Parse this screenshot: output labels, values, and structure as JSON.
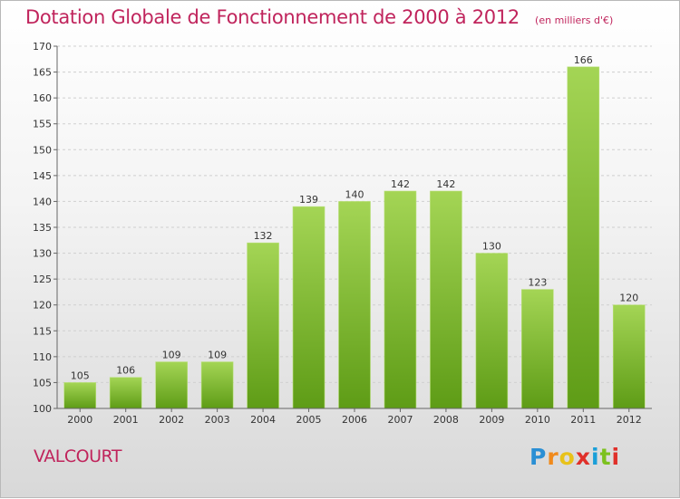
{
  "header": {
    "title": "Dotation Globale de Fonctionnement de 2000 à 2012",
    "subtitle": "(en milliers d'€)"
  },
  "commune": "VALCOURT",
  "logo": {
    "text": "Proxiti",
    "letters": [
      "P",
      "r",
      "o",
      "x",
      "i",
      "t",
      "i"
    ],
    "colors": [
      "#2a8fd4",
      "#f08a1c",
      "#e8c21a",
      "#e0302a",
      "#1a9fd8",
      "#7cc11e",
      "#e0302a"
    ]
  },
  "chart_data": {
    "type": "bar",
    "title": "Dotation Globale de Fonctionnement de 2000 à 2012",
    "subtitle": "(en milliers d'€)",
    "categories": [
      "2000",
      "2001",
      "2002",
      "2003",
      "2004",
      "2005",
      "2006",
      "2007",
      "2008",
      "2009",
      "2010",
      "2011",
      "2012"
    ],
    "values": [
      105,
      106,
      109,
      109,
      132,
      139,
      140,
      142,
      142,
      130,
      123,
      166,
      120
    ],
    "ylim": [
      100,
      170
    ],
    "yticks": [
      100,
      105,
      110,
      115,
      120,
      125,
      130,
      135,
      140,
      145,
      150,
      155,
      160,
      165,
      170
    ],
    "grid": true,
    "legend": "none",
    "bar_color_top": "#a4d555",
    "bar_color_bottom": "#5e9c16"
  }
}
